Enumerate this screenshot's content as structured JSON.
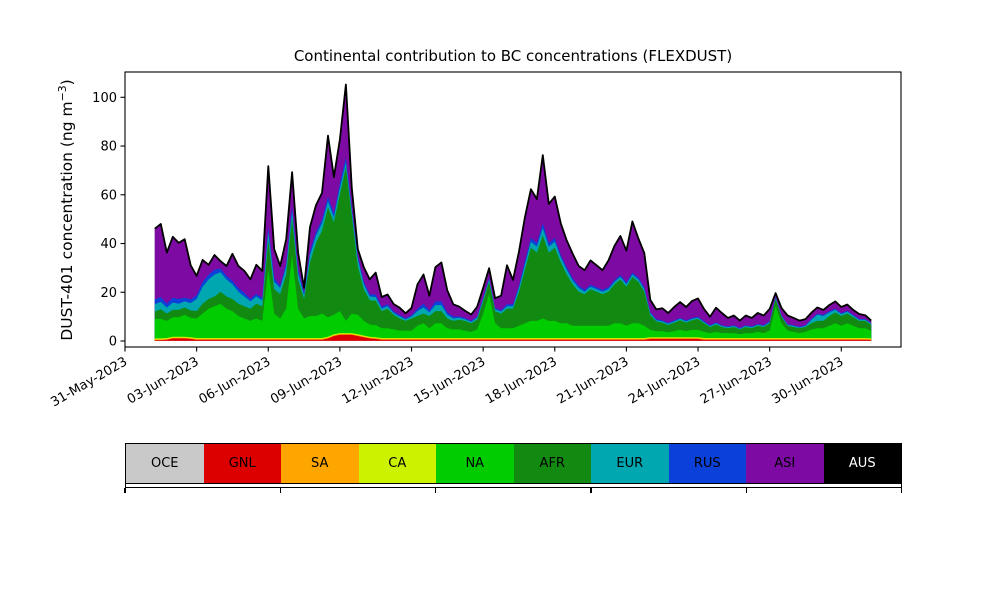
{
  "title": "Continental contribution to BC concentrations (FLEXDUST)",
  "y_axis": {
    "label_prefix": "DUST-401 concentration (ng m",
    "label_sup": "−3",
    "label_suffix": ")"
  },
  "legend": {
    "items": [
      {
        "label": "OCE",
        "color": "#c9c9c9",
        "text_color": "#000000"
      },
      {
        "label": "GNL",
        "color": "#dd0000",
        "text_color": "#000000"
      },
      {
        "label": "SA",
        "color": "#ffa500",
        "text_color": "#000000"
      },
      {
        "label": "CA",
        "color": "#ccf200",
        "text_color": "#000000"
      },
      {
        "label": "NA",
        "color": "#00cc00",
        "text_color": "#000000"
      },
      {
        "label": "AFR",
        "color": "#128a12",
        "text_color": "#000000"
      },
      {
        "label": "EUR",
        "color": "#00a6b0",
        "text_color": "#000000"
      },
      {
        "label": "RUS",
        "color": "#0b41d8",
        "text_color": "#000000"
      },
      {
        "label": "ASI",
        "color": "#7d0ba3",
        "text_color": "#000000"
      },
      {
        "label": "AUS",
        "color": "#000000",
        "text_color": "#ffffff"
      }
    ]
  },
  "chart_data": {
    "type": "area",
    "stacked": true,
    "title": "Continental contribution to BC concentrations (FLEXDUST)",
    "xlabel": "",
    "ylabel": "DUST-401 concentration (ng m⁻³)",
    "ylim": [
      -2.5,
      110.4
    ],
    "xlim_days": [
      0,
      32.5
    ],
    "grid": false,
    "legend_position": "bottom",
    "y_ticks": [
      0,
      20,
      40,
      60,
      80,
      100
    ],
    "x_tick_days": [
      0,
      3,
      6,
      9,
      12,
      15,
      18,
      21,
      24,
      27,
      30
    ],
    "x_tick_labels": [
      "31-May-2023",
      "03-Jun-2023",
      "06-Jun-2023",
      "09-Jun-2023",
      "12-Jun-2023",
      "15-Jun-2023",
      "18-Jun-2023",
      "21-Jun-2023",
      "24-Jun-2023",
      "27-Jun-2023",
      "30-Jun-2023"
    ],
    "x_days": [
      1.25,
      1.5,
      1.75,
      2,
      2.25,
      2.5,
      2.75,
      3,
      3.25,
      3.5,
      3.75,
      4,
      4.25,
      4.5,
      4.75,
      5,
      5.25,
      5.5,
      5.75,
      6,
      6.25,
      6.5,
      6.75,
      7,
      7.25,
      7.5,
      7.75,
      8,
      8.25,
      8.5,
      8.75,
      9,
      9.25,
      9.5,
      9.75,
      10,
      10.25,
      10.5,
      10.75,
      11,
      11.25,
      11.5,
      11.75,
      12,
      12.25,
      12.5,
      12.75,
      13,
      13.25,
      13.5,
      13.75,
      14,
      14.25,
      14.5,
      14.75,
      15,
      15.25,
      15.5,
      15.75,
      16,
      16.25,
      16.5,
      16.75,
      17,
      17.25,
      17.5,
      17.75,
      18,
      18.25,
      18.5,
      18.75,
      19,
      19.25,
      19.5,
      19.75,
      20,
      20.25,
      20.5,
      20.75,
      21,
      21.25,
      21.5,
      21.75,
      22,
      22.25,
      22.5,
      22.75,
      23,
      23.25,
      23.5,
      23.75,
      24,
      24.25,
      24.5,
      24.75,
      25,
      25.25,
      25.5,
      25.75,
      26,
      26.25,
      26.5,
      26.75,
      27,
      27.25,
      27.5,
      27.75,
      28,
      28.25,
      28.5,
      28.75,
      29,
      29.25,
      29.5,
      29.75,
      30,
      30.25,
      30.5,
      30.75,
      31,
      31.25
    ],
    "series": [
      {
        "name": "OCE",
        "color": "#c9c9c9",
        "constant": 0.05
      },
      {
        "name": "GNL",
        "color": "#dd0000",
        "values": [
          0.3,
          0.3,
          0.5,
          1,
          1,
          1,
          0.8,
          0.5,
          0.5,
          0.5,
          0.5,
          0.5,
          0.5,
          0.5,
          0.5,
          0.5,
          0.5,
          0.5,
          0.5,
          0.5,
          0.5,
          0.5,
          0.5,
          0.5,
          0.5,
          0.5,
          0.5,
          0.5,
          0.5,
          1,
          2,
          2.5,
          2.5,
          2.5,
          2,
          1.5,
          1,
          0.8,
          0.5,
          0.5,
          0.5,
          0.5,
          0.5,
          0.5,
          0.5,
          0.5,
          0.5,
          0.5,
          0.5,
          0.5,
          0.5,
          0.5,
          0.5,
          0.5,
          0.5,
          0.5,
          0.5,
          0.5,
          0.5,
          0.5,
          0.5,
          0.5,
          0.5,
          0.5,
          0.5,
          0.5,
          0.5,
          0.5,
          0.5,
          0.5,
          0.5,
          0.5,
          0.5,
          0.5,
          0.5,
          0.5,
          0.5,
          0.5,
          0.5,
          0.5,
          0.5,
          0.5,
          0.5,
          0.8,
          0.8,
          0.8,
          0.8,
          0.8,
          0.8,
          0.8,
          0.8,
          0.8,
          0.5,
          0.5,
          0.5,
          0.5,
          0.5,
          0.5,
          0.5,
          0.5,
          0.5,
          0.5,
          0.5,
          0.5,
          0.5,
          0.5,
          0.5,
          0.5,
          0.5,
          0.5,
          0.5,
          0.5,
          0.5,
          0.5,
          0.5,
          0.5,
          0.5,
          0.5,
          0.5,
          0.5,
          0.4
        ]
      },
      {
        "name": "SA",
        "color": "#ffa500",
        "constant": 0.3
      },
      {
        "name": "CA",
        "color": "#ccf200",
        "constant": 0.4
      },
      {
        "name": "NA",
        "color": "#00cc00",
        "values": [
          8,
          8,
          7,
          8,
          8,
          9,
          8,
          8,
          10,
          12,
          13,
          14,
          12,
          11,
          9,
          8,
          7,
          8,
          7,
          28,
          10,
          8,
          12,
          34,
          12,
          8,
          9,
          9,
          10,
          8,
          8,
          9,
          5,
          8,
          8,
          6,
          5,
          5,
          4,
          4,
          3.5,
          3,
          3,
          3,
          5,
          6,
          4,
          6,
          6,
          4,
          3.5,
          3.5,
          3,
          2.5,
          3.5,
          10,
          18,
          6,
          4,
          4,
          4,
          5,
          6,
          7,
          7,
          8,
          7,
          7,
          6,
          6,
          5,
          5,
          5,
          5,
          5,
          5,
          5,
          6,
          6,
          5,
          6,
          6,
          5,
          3,
          2.5,
          2.5,
          2,
          2.5,
          3,
          2.5,
          3,
          3,
          2.5,
          2,
          2.5,
          2,
          2,
          2,
          1.5,
          2,
          2,
          2.5,
          2,
          3,
          13,
          6,
          3,
          2.5,
          2,
          2.5,
          3.5,
          4,
          4,
          5,
          6,
          5,
          6,
          5,
          4,
          4,
          3
        ]
      },
      {
        "name": "AFR",
        "color": "#128a12",
        "values": [
          3,
          4,
          3,
          3,
          3,
          3,
          3,
          3,
          4,
          4,
          4,
          5,
          5,
          5,
          5,
          5,
          5,
          6,
          6,
          12,
          10,
          10,
          14,
          15,
          12,
          8,
          22,
          30,
          34,
          45,
          38,
          48,
          63,
          40,
          20,
          13,
          10,
          10,
          7,
          8,
          6,
          5,
          4,
          5,
          4,
          4,
          5,
          5,
          5,
          4,
          3.5,
          4,
          4,
          3.5,
          4,
          5,
          5,
          5,
          6,
          8,
          8,
          14,
          22,
          30,
          28,
          34,
          28,
          30,
          25,
          20,
          17,
          14,
          13,
          15,
          14,
          13,
          14,
          16,
          18,
          16,
          19,
          17,
          14,
          6,
          4,
          3.5,
          3,
          3.5,
          4,
          3.5,
          4,
          4.5,
          3.5,
          2.5,
          3,
          2.5,
          2,
          2.5,
          2,
          2.5,
          2,
          2.5,
          2.5,
          3,
          3,
          2.5,
          2,
          2,
          2,
          2,
          2.5,
          3,
          3,
          4,
          4.5,
          4,
          4,
          3.5,
          3,
          3,
          2.5
        ]
      },
      {
        "name": "EUR",
        "color": "#00a6b0",
        "values": [
          3,
          3,
          2.5,
          3,
          2.5,
          2.5,
          3,
          5,
          7,
          8,
          9,
          8,
          7,
          6,
          5,
          4,
          3,
          3,
          2.5,
          3.5,
          3,
          2.5,
          3,
          3,
          2.5,
          1.5,
          3,
          3,
          3,
          2.5,
          2,
          2.5,
          2,
          2,
          3,
          2,
          1.5,
          1.5,
          1,
          1,
          0.8,
          0.8,
          0.6,
          0.8,
          2,
          2.5,
          1.5,
          2.5,
          2.5,
          1.5,
          1,
          0.8,
          0.6,
          0.6,
          0.8,
          1,
          1,
          0.8,
          0.8,
          1,
          1,
          1.5,
          2,
          2.5,
          2.5,
          3,
          2.5,
          2.5,
          2,
          2,
          1.5,
          1.5,
          1,
          1,
          1,
          1,
          1,
          1,
          1,
          1,
          1,
          1,
          1,
          0.8,
          0.5,
          0.5,
          0.5,
          0.5,
          0.5,
          0.5,
          0.5,
          0.5,
          0.5,
          0.4,
          0.5,
          0.4,
          0.4,
          0.4,
          0.3,
          0.4,
          0.4,
          0.4,
          0.4,
          0.5,
          0.5,
          0.4,
          0.4,
          0.4,
          0.3,
          0.4,
          1.5,
          2.5,
          2,
          1.5,
          1,
          0.8,
          0.8,
          0.6,
          0.5,
          0.5,
          0.4
        ]
      },
      {
        "name": "RUS",
        "color": "#0b41d8",
        "values": [
          2,
          2,
          1.5,
          2,
          2,
          1.5,
          1.5,
          1.5,
          2,
          2,
          2,
          1.5,
          1.5,
          1.5,
          1.5,
          1.5,
          1,
          1,
          1,
          2,
          1.5,
          1,
          1.5,
          2,
          1.5,
          1,
          1.5,
          1.5,
          1.5,
          2,
          1.5,
          2,
          2,
          1.5,
          1,
          1,
          1,
          1,
          0.8,
          0.8,
          0.6,
          0.6,
          0.5,
          0.5,
          1,
          1.5,
          0.8,
          1.5,
          1.5,
          1,
          0.8,
          0.5,
          0.5,
          0.5,
          0.5,
          0.6,
          0.6,
          0.5,
          0.5,
          0.8,
          0.8,
          1,
          1.5,
          1.5,
          1.5,
          2,
          1.5,
          1.5,
          1,
          1,
          1,
          1,
          0.8,
          0.8,
          0.8,
          0.8,
          0.8,
          0.8,
          0.8,
          0.8,
          0.8,
          0.8,
          0.8,
          0.5,
          0.4,
          0.4,
          0.4,
          0.4,
          0.4,
          0.4,
          0.4,
          0.4,
          0.4,
          0.3,
          0.4,
          0.3,
          0.3,
          0.3,
          0.3,
          0.3,
          0.3,
          0.3,
          0.3,
          0.4,
          0.4,
          0.3,
          0.3,
          0.3,
          0.3,
          0.3,
          0.4,
          0.5,
          0.5,
          0.5,
          0.5,
          0.4,
          0.4,
          0.4,
          0.3,
          0.3,
          0.3
        ]
      },
      {
        "name": "ASI",
        "color": "#7d0ba3",
        "values": [
          29,
          30,
          21,
          25,
          23,
          24,
          14,
          8,
          9,
          4,
          6,
          3,
          4,
          11,
          9,
          9,
          8,
          12,
          11,
          25,
          12,
          8,
          10,
          14,
          7,
          2,
          10,
          11,
          11,
          25,
          15,
          18,
          30,
          8,
          3,
          6,
          6,
          9,
          4,
          4,
          3,
          3,
          2,
          3,
          10,
          12,
          6,
          14,
          16,
          9,
          5,
          4,
          3,
          2.5,
          4,
          4,
          4,
          4,
          6,
          16,
          10,
          14,
          18,
          20,
          18,
          28,
          16,
          17,
          13,
          11,
          10,
          8,
          8,
          10,
          9,
          8,
          11,
          14,
          16,
          13,
          21,
          16,
          14,
          5,
          4,
          5,
          4,
          5.5,
          6.5,
          5.5,
          7,
          7.5,
          5,
          3.5,
          6,
          5,
          3.5,
          4,
          3,
          4,
          3.5,
          4.5,
          4,
          5,
          1.5,
          3,
          3.5,
          3,
          2.5,
          2.5,
          2.5,
          2.5,
          2,
          2.5,
          3,
          2.5,
          2.5,
          2,
          2,
          1.5,
          1
        ]
      },
      {
        "name": "AUS",
        "color": "#000000",
        "constant": 0.02
      }
    ],
    "outline_color": "#000000"
  }
}
